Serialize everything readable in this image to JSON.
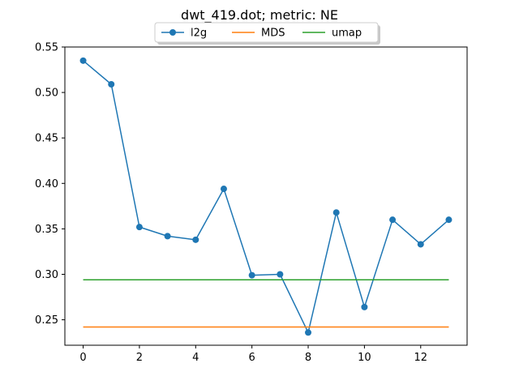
{
  "chart_data": {
    "type": "line",
    "title": "dwt_419.dot; metric: NE",
    "xlabel": "",
    "ylabel": "",
    "xlim": [
      -0.65,
      13.65
    ],
    "ylim": [
      0.222,
      0.55
    ],
    "xticks": [
      0,
      2,
      4,
      6,
      8,
      10,
      12
    ],
    "yticks": [
      0.25,
      0.3,
      0.35,
      0.4,
      0.45,
      0.5,
      0.55
    ],
    "ytick_labels": [
      "0.25",
      "0.30",
      "0.35",
      "0.40",
      "0.45",
      "0.50",
      "0.55"
    ],
    "legend_position": "top-center",
    "grid": false,
    "series": [
      {
        "name": "l2g",
        "color": "#1f77b4",
        "marker": "circle",
        "x": [
          0,
          1,
          2,
          3,
          4,
          5,
          6,
          7,
          8,
          9,
          10,
          11,
          12,
          13
        ],
        "values": [
          0.535,
          0.509,
          0.352,
          0.342,
          0.338,
          0.394,
          0.299,
          0.3,
          0.236,
          0.368,
          0.264,
          0.36,
          0.333,
          0.36
        ]
      },
      {
        "name": "MDS",
        "color": "#ff7f0e",
        "marker": "none",
        "x": [
          0,
          13
        ],
        "values": [
          0.242,
          0.242
        ]
      },
      {
        "name": "umap",
        "color": "#2ca02c",
        "marker": "none",
        "x": [
          0,
          13
        ],
        "values": [
          0.294,
          0.294
        ]
      }
    ]
  }
}
